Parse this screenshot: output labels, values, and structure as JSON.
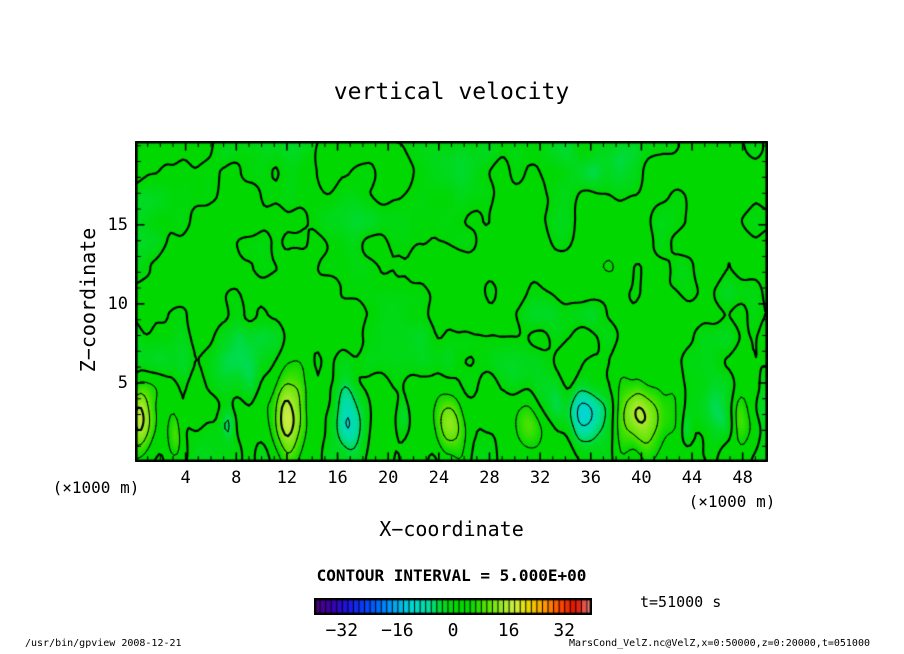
{
  "title": "vertical velocity",
  "axes": {
    "x": {
      "label": "X−coordinate",
      "unit": "(×1000 m)",
      "range": [
        0,
        50
      ],
      "ticks": [
        4,
        8,
        12,
        16,
        20,
        24,
        28,
        32,
        36,
        40,
        44,
        48
      ],
      "minor_step": 1
    },
    "y": {
      "label": "Z−coordinate",
      "unit": "(×1000 m)",
      "range": [
        0,
        20.3
      ],
      "ticks": [
        5,
        10,
        15
      ],
      "minor_step": 1
    }
  },
  "annotations": {
    "contour_interval": "CONTOUR INTERVAL = 5.000E+00",
    "time": "t=51000 s"
  },
  "footer": {
    "left": "/usr/bin/gpview  2008-12-21",
    "right": "MarsCond_VelZ.nc@VelZ,x=0:50000,z=0:20000,t=051000"
  },
  "colorbar": {
    "range": [
      -40,
      40
    ],
    "cells": 50,
    "labels": [
      -32,
      -16,
      0,
      16,
      32
    ],
    "border_color": "#000000"
  },
  "chart_data": {
    "type": "heatmap",
    "subtype": "filled-contour",
    "title": "vertical velocity",
    "xlabel": "X−coordinate (×1000 m)",
    "ylabel": "Z−coordinate (×1000 m)",
    "x_range": [
      0,
      50
    ],
    "z_range": [
      0,
      20.3
    ],
    "contour_interval": 5,
    "contour_levels": [
      -15,
      -10,
      -5,
      0,
      5,
      10,
      15,
      20
    ],
    "negative_style": "dashed",
    "thick_levels": [
      0,
      15
    ],
    "line_color": "#000000",
    "background_field_color": "#00d800",
    "colormap": {
      "range": [
        -40,
        40
      ],
      "stops": [
        [
          0.0,
          "#50007d"
        ],
        [
          0.06,
          "#3c00aa"
        ],
        [
          0.12,
          "#1e14e6"
        ],
        [
          0.2,
          "#0050ff"
        ],
        [
          0.28,
          "#00a0fa"
        ],
        [
          0.35,
          "#00d7d2"
        ],
        [
          0.41,
          "#00dfa0"
        ],
        [
          0.455,
          "#00da28"
        ],
        [
          0.5,
          "#00d800"
        ],
        [
          0.56,
          "#00d800"
        ],
        [
          0.62,
          "#55e400"
        ],
        [
          0.68,
          "#a0ea28"
        ],
        [
          0.72,
          "#ccee46"
        ],
        [
          0.76,
          "#e6e100"
        ],
        [
          0.82,
          "#ffa500"
        ],
        [
          0.88,
          "#ff5000"
        ],
        [
          0.94,
          "#e10e00"
        ],
        [
          1.0,
          "#f0968c"
        ]
      ]
    },
    "updraft_plumes": [
      {
        "x": 0.3,
        "z": 2.4,
        "sx": 1.1,
        "sz": 2.4,
        "peak": 16
      },
      {
        "x": 3.1,
        "z": 1.6,
        "sx": 0.65,
        "sz": 1.6,
        "peak": 9
      },
      {
        "x": 12.0,
        "z": 3.1,
        "sx": 1.25,
        "sz": 2.7,
        "peak": 20
      },
      {
        "x": 24.8,
        "z": 2.5,
        "sx": 1.15,
        "sz": 2.1,
        "peak": 16
      },
      {
        "x": 31.2,
        "z": 2.4,
        "sx": 1.5,
        "sz": 1.7,
        "peak": 9
      },
      {
        "x": 40.0,
        "z": 2.8,
        "sx": 1.9,
        "sz": 2.3,
        "peak": 16
      },
      {
        "x": 47.6,
        "z": 2.6,
        "sx": 1.2,
        "sz": 1.9,
        "peak": 11
      }
    ],
    "downdraft_pockets": [
      {
        "x": 7.3,
        "z": 2.3,
        "sx": 0.55,
        "sz": 1.1,
        "peak": -6
      },
      {
        "x": 17.0,
        "z": 3.0,
        "sx": 1.15,
        "sz": 2.3,
        "peak": -11
      },
      {
        "x": 21.2,
        "z": 2.9,
        "sx": 0.6,
        "sz": 1.3,
        "peak": -6.5
      },
      {
        "x": 35.5,
        "z": 2.7,
        "sx": 1.5,
        "sz": 1.9,
        "peak": -9
      },
      {
        "x": 43.6,
        "z": 2.0,
        "sx": 0.45,
        "sz": 0.9,
        "peak": -5.5
      },
      {
        "x": 46.9,
        "z": 2.5,
        "sx": 0.85,
        "sz": 1.7,
        "peak": -8.5
      }
    ],
    "turbulence": {
      "seed": 17,
      "octaves": [
        {
          "sx": 4.2,
          "sz": 3.1,
          "amp": 0.52,
          "type": "ampscaled"
        },
        {
          "sx": 1.9,
          "sz": 1.5,
          "amp": 0.3,
          "type": "ampscaled"
        },
        {
          "sx": 1.05,
          "sz": 4.8,
          "amp": 2.8,
          "type": "bottom-streaks"
        }
      ],
      "amp_profile": {
        "base": 2.2,
        "grow": 3.8,
        "z_scale": 5.5
      },
      "midband_boost": {
        "center_z": 10.5,
        "width": 3.5,
        "gain": 0.25
      }
    }
  }
}
